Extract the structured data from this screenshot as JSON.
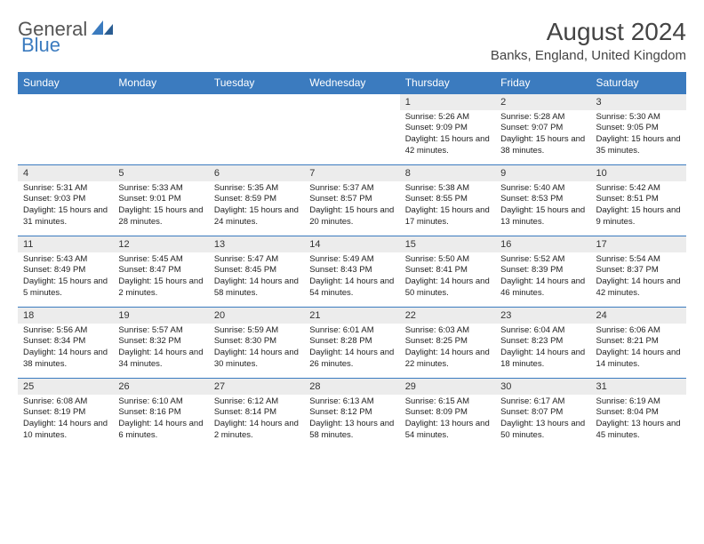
{
  "logo": {
    "general": "General",
    "blue": "Blue"
  },
  "title": "August 2024",
  "location": "Banks, England, United Kingdom",
  "colors": {
    "header_bg": "#3b7bbf",
    "header_text": "#ffffff",
    "daynum_bg": "#ececec",
    "border": "#3b7bbf",
    "body_bg": "#ffffff",
    "text": "#222222",
    "title_text": "#444444"
  },
  "day_headers": [
    "Sunday",
    "Monday",
    "Tuesday",
    "Wednesday",
    "Thursday",
    "Friday",
    "Saturday"
  ],
  "weeks": [
    [
      null,
      null,
      null,
      null,
      {
        "n": "1",
        "sr": "5:26 AM",
        "ss": "9:09 PM",
        "dl": "15 hours and 42 minutes."
      },
      {
        "n": "2",
        "sr": "5:28 AM",
        "ss": "9:07 PM",
        "dl": "15 hours and 38 minutes."
      },
      {
        "n": "3",
        "sr": "5:30 AM",
        "ss": "9:05 PM",
        "dl": "15 hours and 35 minutes."
      }
    ],
    [
      {
        "n": "4",
        "sr": "5:31 AM",
        "ss": "9:03 PM",
        "dl": "15 hours and 31 minutes."
      },
      {
        "n": "5",
        "sr": "5:33 AM",
        "ss": "9:01 PM",
        "dl": "15 hours and 28 minutes."
      },
      {
        "n": "6",
        "sr": "5:35 AM",
        "ss": "8:59 PM",
        "dl": "15 hours and 24 minutes."
      },
      {
        "n": "7",
        "sr": "5:37 AM",
        "ss": "8:57 PM",
        "dl": "15 hours and 20 minutes."
      },
      {
        "n": "8",
        "sr": "5:38 AM",
        "ss": "8:55 PM",
        "dl": "15 hours and 17 minutes."
      },
      {
        "n": "9",
        "sr": "5:40 AM",
        "ss": "8:53 PM",
        "dl": "15 hours and 13 minutes."
      },
      {
        "n": "10",
        "sr": "5:42 AM",
        "ss": "8:51 PM",
        "dl": "15 hours and 9 minutes."
      }
    ],
    [
      {
        "n": "11",
        "sr": "5:43 AM",
        "ss": "8:49 PM",
        "dl": "15 hours and 5 minutes."
      },
      {
        "n": "12",
        "sr": "5:45 AM",
        "ss": "8:47 PM",
        "dl": "15 hours and 2 minutes."
      },
      {
        "n": "13",
        "sr": "5:47 AM",
        "ss": "8:45 PM",
        "dl": "14 hours and 58 minutes."
      },
      {
        "n": "14",
        "sr": "5:49 AM",
        "ss": "8:43 PM",
        "dl": "14 hours and 54 minutes."
      },
      {
        "n": "15",
        "sr": "5:50 AM",
        "ss": "8:41 PM",
        "dl": "14 hours and 50 minutes."
      },
      {
        "n": "16",
        "sr": "5:52 AM",
        "ss": "8:39 PM",
        "dl": "14 hours and 46 minutes."
      },
      {
        "n": "17",
        "sr": "5:54 AM",
        "ss": "8:37 PM",
        "dl": "14 hours and 42 minutes."
      }
    ],
    [
      {
        "n": "18",
        "sr": "5:56 AM",
        "ss": "8:34 PM",
        "dl": "14 hours and 38 minutes."
      },
      {
        "n": "19",
        "sr": "5:57 AM",
        "ss": "8:32 PM",
        "dl": "14 hours and 34 minutes."
      },
      {
        "n": "20",
        "sr": "5:59 AM",
        "ss": "8:30 PM",
        "dl": "14 hours and 30 minutes."
      },
      {
        "n": "21",
        "sr": "6:01 AM",
        "ss": "8:28 PM",
        "dl": "14 hours and 26 minutes."
      },
      {
        "n": "22",
        "sr": "6:03 AM",
        "ss": "8:25 PM",
        "dl": "14 hours and 22 minutes."
      },
      {
        "n": "23",
        "sr": "6:04 AM",
        "ss": "8:23 PM",
        "dl": "14 hours and 18 minutes."
      },
      {
        "n": "24",
        "sr": "6:06 AM",
        "ss": "8:21 PM",
        "dl": "14 hours and 14 minutes."
      }
    ],
    [
      {
        "n": "25",
        "sr": "6:08 AM",
        "ss": "8:19 PM",
        "dl": "14 hours and 10 minutes."
      },
      {
        "n": "26",
        "sr": "6:10 AM",
        "ss": "8:16 PM",
        "dl": "14 hours and 6 minutes."
      },
      {
        "n": "27",
        "sr": "6:12 AM",
        "ss": "8:14 PM",
        "dl": "14 hours and 2 minutes."
      },
      {
        "n": "28",
        "sr": "6:13 AM",
        "ss": "8:12 PM",
        "dl": "13 hours and 58 minutes."
      },
      {
        "n": "29",
        "sr": "6:15 AM",
        "ss": "8:09 PM",
        "dl": "13 hours and 54 minutes."
      },
      {
        "n": "30",
        "sr": "6:17 AM",
        "ss": "8:07 PM",
        "dl": "13 hours and 50 minutes."
      },
      {
        "n": "31",
        "sr": "6:19 AM",
        "ss": "8:04 PM",
        "dl": "13 hours and 45 minutes."
      }
    ]
  ],
  "labels": {
    "sunrise": "Sunrise:",
    "sunset": "Sunset:",
    "daylight": "Daylight:"
  }
}
